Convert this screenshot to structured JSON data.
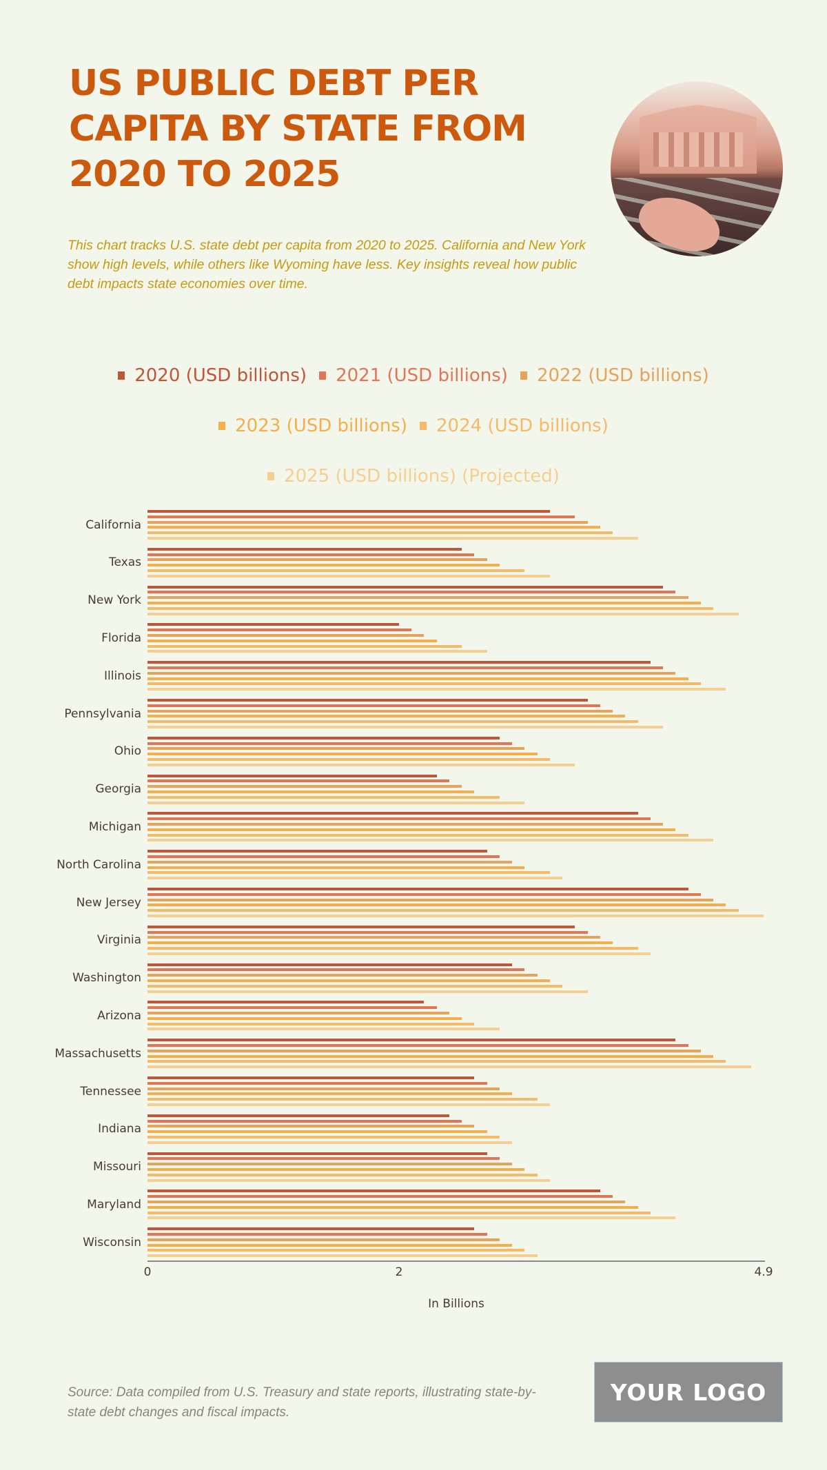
{
  "header": {
    "title": "US PUBLIC DEBT PER CAPITA BY STATE FROM 2020 TO 2025",
    "subtitle": "This chart tracks U.S. state debt per capita from 2020 to 2025. California and New York show high levels, while others like Wyoming have less. Key insights reveal how public debt impacts state economies over time.",
    "image_alt": "Circular photo of a classical stock exchange building with banknotes and a mask on the ground"
  },
  "legend": [
    {
      "label": "2020 (USD billions)",
      "color": "#bf5639"
    },
    {
      "label": "2021 (USD billions)",
      "color": "#e07656"
    },
    {
      "label": "2022 (USD billions)",
      "color": "#e5a35e"
    },
    {
      "label": "2023 (USD billions)",
      "color": "#f5ae4a"
    },
    {
      "label": "2024 (USD billions)",
      "color": "#f4ba6a"
    },
    {
      "label": "2025 (USD billions) (Projected)",
      "color": "#f5cf92"
    }
  ],
  "axis": {
    "ticks": [
      {
        "label": "0",
        "value": 0
      },
      {
        "label": "2",
        "value": 2
      },
      {
        "label": "4.9",
        "value": 4.9
      }
    ],
    "xlabel": "In Billions"
  },
  "footer": {
    "source": "Source: Data compiled from U.S. Treasury and state reports, illustrating state-by-state debt changes and fiscal impacts.",
    "logo": "YOUR LOGO"
  },
  "chart_data": {
    "type": "bar",
    "orientation": "horizontal",
    "title": "US PUBLIC DEBT PER CAPITA BY STATE FROM 2020 TO 2025",
    "xlabel": "In Billions",
    "ylabel": "",
    "xlim": [
      0,
      4.9
    ],
    "grid": false,
    "legend_position": "top",
    "categories": [
      "California",
      "Texas",
      "New York",
      "Florida",
      "Illinois",
      "Pennsylvania",
      "Ohio",
      "Georgia",
      "Michigan",
      "North Carolina",
      "New Jersey",
      "Virginia",
      "Washington",
      "Arizona",
      "Massachusetts",
      "Tennessee",
      "Indiana",
      "Missouri",
      "Maryland",
      "Wisconsin"
    ],
    "series": [
      {
        "name": "2020 (USD billions)",
        "values": [
          3.2,
          2.5,
          4.1,
          2.0,
          4.0,
          3.5,
          2.8,
          2.3,
          3.9,
          2.7,
          4.3,
          3.4,
          2.9,
          2.2,
          4.2,
          2.6,
          2.4,
          2.7,
          3.6,
          2.6
        ]
      },
      {
        "name": "2021 (USD billions)",
        "values": [
          3.4,
          2.6,
          4.2,
          2.1,
          4.1,
          3.6,
          2.9,
          2.4,
          4.0,
          2.8,
          4.4,
          3.5,
          3.0,
          2.3,
          4.3,
          2.7,
          2.5,
          2.8,
          3.7,
          2.7
        ]
      },
      {
        "name": "2022 (USD billions)",
        "values": [
          3.5,
          2.7,
          4.3,
          2.2,
          4.2,
          3.7,
          3.0,
          2.5,
          4.1,
          2.9,
          4.5,
          3.6,
          3.1,
          2.4,
          4.4,
          2.8,
          2.6,
          2.9,
          3.8,
          2.8
        ]
      },
      {
        "name": "2023 (USD billions)",
        "values": [
          3.6,
          2.8,
          4.4,
          2.3,
          4.3,
          3.8,
          3.1,
          2.6,
          4.2,
          3.0,
          4.6,
          3.7,
          3.2,
          2.5,
          4.5,
          2.9,
          2.7,
          3.0,
          3.9,
          2.9
        ]
      },
      {
        "name": "2024 (USD billions)",
        "values": [
          3.7,
          3.0,
          4.5,
          2.5,
          4.4,
          3.9,
          3.2,
          2.8,
          4.3,
          3.2,
          4.7,
          3.9,
          3.3,
          2.6,
          4.6,
          3.1,
          2.8,
          3.1,
          4.0,
          3.0
        ]
      },
      {
        "name": "2025 (USD billions) (Projected)",
        "values": [
          3.9,
          3.2,
          4.7,
          2.7,
          4.6,
          4.1,
          3.4,
          3.0,
          4.5,
          3.3,
          4.9,
          4.0,
          3.5,
          2.8,
          4.8,
          3.2,
          2.9,
          3.2,
          4.2,
          3.1
        ]
      }
    ]
  }
}
